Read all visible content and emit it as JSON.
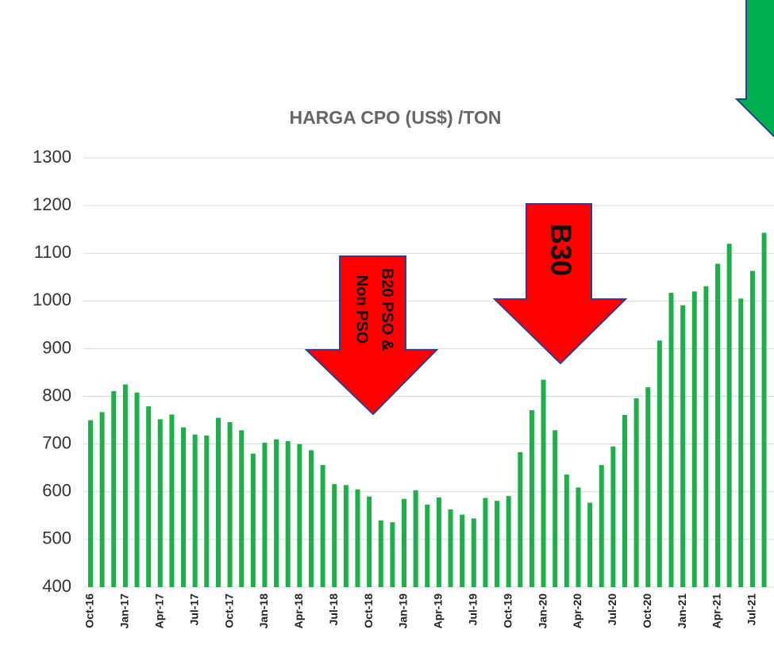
{
  "chart_data": {
    "type": "bar",
    "title": "HARGA CPO (US$) /TON",
    "categories": [
      "Oct-16",
      null,
      null,
      "Jan-17",
      null,
      null,
      "Apr-17",
      null,
      null,
      "Jul-17",
      null,
      null,
      "Oct-17",
      null,
      null,
      "Jan-18",
      null,
      null,
      "Apr-18",
      null,
      null,
      "Jul-18",
      null,
      null,
      "Oct-18",
      null,
      null,
      "Jan-19",
      null,
      null,
      "Apr-19",
      null,
      null,
      "Jul-19",
      null,
      null,
      "Oct-19",
      null,
      null,
      "Jan-20",
      null,
      null,
      "Apr-20",
      null,
      null,
      "Jul-20",
      null,
      null,
      "Oct-20",
      null,
      null,
      "Jan-21",
      null,
      null,
      "Apr-21",
      null,
      null,
      "Jul-21",
      null
    ],
    "values": [
      750,
      767,
      811,
      825,
      808,
      779,
      752,
      762,
      735,
      720,
      718,
      755,
      746,
      729,
      680,
      703,
      710,
      706,
      700,
      687,
      656,
      616,
      614,
      605,
      590,
      540,
      536,
      585,
      603,
      573,
      588,
      563,
      552,
      544,
      587,
      581,
      591,
      683,
      771,
      835,
      729,
      636,
      609,
      577,
      656,
      695,
      761,
      796,
      819,
      917,
      1017,
      991,
      1020,
      1031,
      1078,
      1120,
      1005,
      1063,
      1143
    ],
    "color": "#1db04a",
    "ylim": [
      400,
      1300
    ],
    "yticks": [
      400,
      500,
      600,
      700,
      800,
      900,
      1000,
      1100,
      1200,
      1300
    ],
    "grid": true,
    "annotations": [
      [
        "B20 PSO &",
        "Non PSO"
      ],
      "B30"
    ]
  }
}
